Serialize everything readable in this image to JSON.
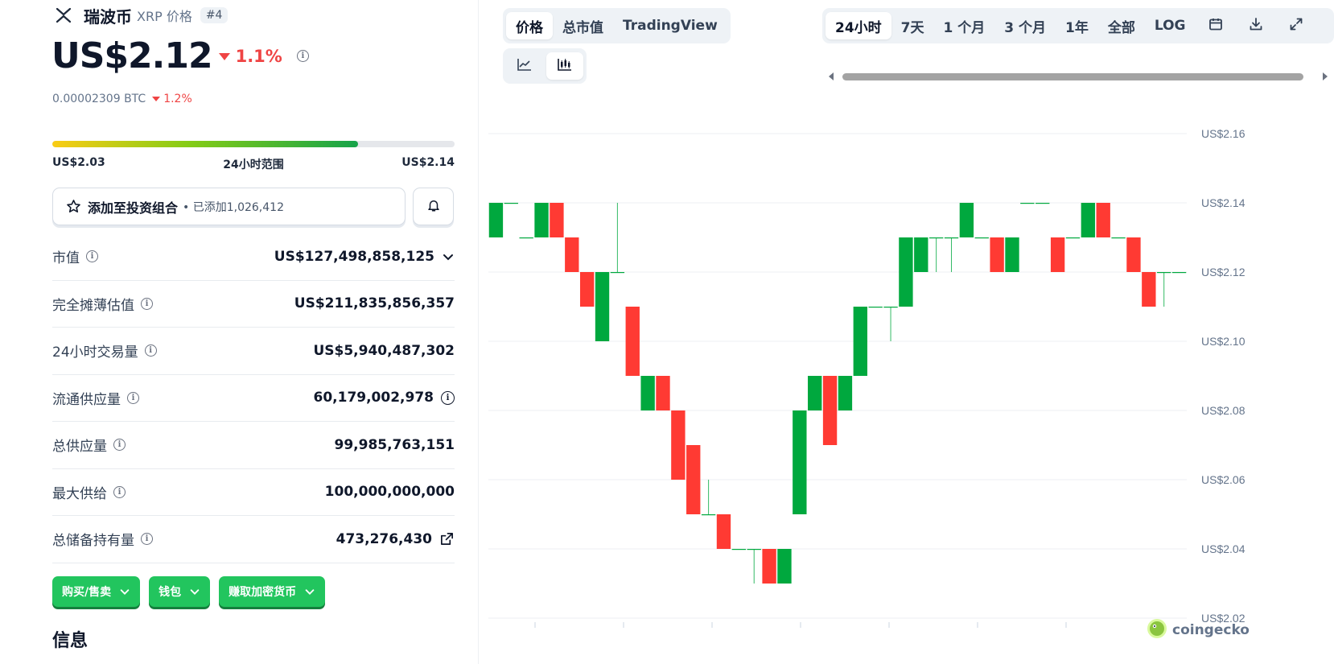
{
  "coin": {
    "name": "瑞波币",
    "subtitle": "XRP 价格",
    "rank": "#4",
    "price": "US$2.12",
    "change": "1.1%",
    "btc_price": "0.00002309 BTC",
    "btc_change": "1.2%"
  },
  "range": {
    "low": "US$2.03",
    "label": "24小时范围",
    "high": "US$2.14",
    "fill_percent": 76
  },
  "portfolio": {
    "label": "添加至投资组合",
    "added": "• 已添加1,026,412"
  },
  "stats": [
    {
      "label": "市值",
      "value": "US$127,498,858,125",
      "trail": "chevron-down-icon"
    },
    {
      "label": "完全摊薄估值",
      "value": "US$211,835,856,357",
      "trail": ""
    },
    {
      "label": "24小时交易量",
      "value": "US$5,940,487,302",
      "trail": ""
    },
    {
      "label": "流通供应量",
      "value": "60,179,002,978",
      "trail": "info-icon"
    },
    {
      "label": "总供应量",
      "value": "99,985,763,151",
      "trail": ""
    },
    {
      "label": "最大供给",
      "value": "100,000,000,000",
      "trail": ""
    },
    {
      "label": "总储备持有量",
      "value": "473,276,430",
      "trail": "external-link-icon"
    }
  ],
  "actions": [
    "购买/售卖",
    "钱包",
    "赚取加密货币"
  ],
  "info_heading": "信息",
  "chart_tabs": [
    "价格",
    "总市值",
    "TradingView"
  ],
  "range_tabs": [
    "24小时",
    "7天",
    "1 个月",
    "3 个月",
    "1年",
    "全部",
    "LOG"
  ],
  "watermark": "coingecko",
  "colors": {
    "up": "#00a83e",
    "down": "#ff3a33",
    "accent": "#22c55e"
  },
  "chart_data": {
    "type": "candlestick",
    "ylim": [
      2.02,
      2.16
    ],
    "y_ticks": [
      "US$2.16",
      "US$2.14",
      "US$2.12",
      "US$2.10",
      "US$2.08",
      "US$2.06",
      "US$2.04",
      "US$2.02"
    ],
    "candles": [
      {
        "o": 2.13,
        "c": 2.14,
        "h": 2.14,
        "l": 2.13
      },
      {
        "o": 2.14,
        "c": 2.14,
        "h": 2.14,
        "l": 2.14
      },
      {
        "o": 2.13,
        "c": 2.13,
        "h": 2.13,
        "l": 2.13
      },
      {
        "o": 2.13,
        "c": 2.14,
        "h": 2.14,
        "l": 2.13
      },
      {
        "o": 2.14,
        "c": 2.13,
        "h": 2.14,
        "l": 2.13
      },
      {
        "o": 2.13,
        "c": 2.12,
        "h": 2.13,
        "l": 2.12
      },
      {
        "o": 2.12,
        "c": 2.11,
        "h": 2.12,
        "l": 2.11
      },
      {
        "o": 2.1,
        "c": 2.12,
        "h": 2.12,
        "l": 2.1
      },
      {
        "o": 2.12,
        "c": 2.12,
        "h": 2.14,
        "l": 2.12
      },
      {
        "o": 2.11,
        "c": 2.09,
        "h": 2.11,
        "l": 2.09
      },
      {
        "o": 2.08,
        "c": 2.09,
        "h": 2.09,
        "l": 2.08
      },
      {
        "o": 2.09,
        "c": 2.08,
        "h": 2.09,
        "l": 2.08
      },
      {
        "o": 2.08,
        "c": 2.06,
        "h": 2.08,
        "l": 2.06
      },
      {
        "o": 2.07,
        "c": 2.05,
        "h": 2.07,
        "l": 2.05
      },
      {
        "o": 2.05,
        "c": 2.05,
        "h": 2.06,
        "l": 2.05
      },
      {
        "o": 2.05,
        "c": 2.04,
        "h": 2.05,
        "l": 2.04
      },
      {
        "o": 2.04,
        "c": 2.04,
        "h": 2.04,
        "l": 2.04
      },
      {
        "o": 2.04,
        "c": 2.04,
        "h": 2.04,
        "l": 2.03
      },
      {
        "o": 2.04,
        "c": 2.03,
        "h": 2.04,
        "l": 2.03
      },
      {
        "o": 2.03,
        "c": 2.04,
        "h": 2.04,
        "l": 2.03
      },
      {
        "o": 2.05,
        "c": 2.08,
        "h": 2.08,
        "l": 2.05
      },
      {
        "o": 2.08,
        "c": 2.09,
        "h": 2.09,
        "l": 2.08
      },
      {
        "o": 2.09,
        "c": 2.07,
        "h": 2.09,
        "l": 2.07
      },
      {
        "o": 2.08,
        "c": 2.09,
        "h": 2.09,
        "l": 2.08
      },
      {
        "o": 2.09,
        "c": 2.11,
        "h": 2.11,
        "l": 2.09
      },
      {
        "o": 2.11,
        "c": 2.11,
        "h": 2.11,
        "l": 2.11
      },
      {
        "o": 2.11,
        "c": 2.11,
        "h": 2.11,
        "l": 2.1
      },
      {
        "o": 2.11,
        "c": 2.13,
        "h": 2.13,
        "l": 2.11
      },
      {
        "o": 2.12,
        "c": 2.13,
        "h": 2.13,
        "l": 2.12
      },
      {
        "o": 2.13,
        "c": 2.13,
        "h": 2.13,
        "l": 2.12
      },
      {
        "o": 2.13,
        "c": 2.13,
        "h": 2.13,
        "l": 2.12
      },
      {
        "o": 2.13,
        "c": 2.14,
        "h": 2.14,
        "l": 2.13
      },
      {
        "o": 2.13,
        "c": 2.13,
        "h": 2.13,
        "l": 2.13
      },
      {
        "o": 2.13,
        "c": 2.12,
        "h": 2.13,
        "l": 2.12
      },
      {
        "o": 2.12,
        "c": 2.13,
        "h": 2.13,
        "l": 2.12
      },
      {
        "o": 2.14,
        "c": 2.14,
        "h": 2.14,
        "l": 2.14
      },
      {
        "o": 2.14,
        "c": 2.14,
        "h": 2.14,
        "l": 2.14
      },
      {
        "o": 2.13,
        "c": 2.12,
        "h": 2.13,
        "l": 2.12
      },
      {
        "o": 2.13,
        "c": 2.13,
        "h": 2.13,
        "l": 2.13
      },
      {
        "o": 2.13,
        "c": 2.14,
        "h": 2.14,
        "l": 2.13
      },
      {
        "o": 2.14,
        "c": 2.13,
        "h": 2.14,
        "l": 2.13
      },
      {
        "o": 2.13,
        "c": 2.13,
        "h": 2.13,
        "l": 2.13
      },
      {
        "o": 2.13,
        "c": 2.12,
        "h": 2.13,
        "l": 2.12
      },
      {
        "o": 2.12,
        "c": 2.11,
        "h": 2.12,
        "l": 2.11
      },
      {
        "o": 2.12,
        "c": 2.12,
        "h": 2.12,
        "l": 2.11
      },
      {
        "o": 2.12,
        "c": 2.12,
        "h": 2.12,
        "l": 2.12
      }
    ]
  }
}
